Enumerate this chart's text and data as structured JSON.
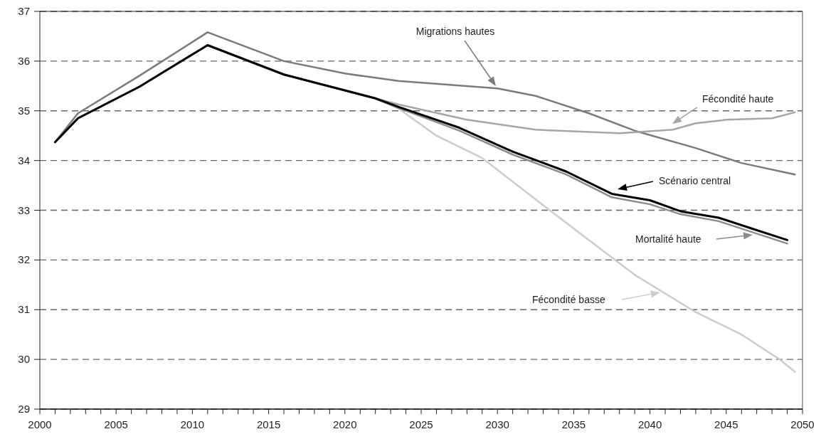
{
  "chart_data": {
    "type": "line",
    "xlim": [
      2000,
      2050
    ],
    "xticks": [
      2000,
      {
        "value": 2001,
        "label": null
      },
      {
        "value": 2002,
        "label": null
      },
      {
        "value": 2003,
        "label": null
      },
      {
        "value": 2004,
        "label": null
      },
      2005,
      {
        "value": 2006,
        "label": null
      },
      {
        "value": 2007,
        "label": null
      },
      {
        "value": 2008,
        "label": null
      },
      {
        "value": 2009,
        "label": null
      },
      2010,
      {
        "value": 2011,
        "label": null
      },
      {
        "value": 2012,
        "label": null
      },
      {
        "value": 2013,
        "label": null
      },
      {
        "value": 2014,
        "label": null
      },
      2015,
      {
        "value": 2016,
        "label": null
      },
      {
        "value": 2017,
        "label": null
      },
      {
        "value": 2018,
        "label": null
      },
      {
        "value": 2019,
        "label": null
      },
      2020,
      {
        "value": 2021,
        "label": null
      },
      {
        "value": 2022,
        "label": null
      },
      {
        "value": 2023,
        "label": null
      },
      {
        "value": 2024,
        "label": null
      },
      2025,
      {
        "value": 2026,
        "label": null
      },
      {
        "value": 2027,
        "label": null
      },
      {
        "value": 2028,
        "label": null
      },
      {
        "value": 2029,
        "label": null
      },
      2030,
      {
        "value": 2031,
        "label": null
      },
      {
        "value": 2032,
        "label": null
      },
      {
        "value": 2033,
        "label": null
      },
      {
        "value": 2034,
        "label": null
      },
      2035,
      {
        "value": 2036,
        "label": null
      },
      {
        "value": 2037,
        "label": null
      },
      {
        "value": 2038,
        "label": null
      },
      {
        "value": 2039,
        "label": null
      },
      2040,
      {
        "value": 2041,
        "label": null
      },
      {
        "value": 2042,
        "label": null
      },
      {
        "value": 2043,
        "label": null
      },
      {
        "value": 2044,
        "label": null
      },
      2045,
      {
        "value": 2046,
        "label": null
      },
      {
        "value": 2047,
        "label": null
      },
      {
        "value": 2048,
        "label": null
      },
      {
        "value": 2049,
        "label": null
      },
      2050
    ],
    "ylim": [
      29,
      37
    ],
    "yticks": [
      29,
      30,
      31,
      32,
      33,
      34,
      35,
      36,
      37
    ],
    "grid": "y",
    "line_style": "solid",
    "marker": "none",
    "annotations": [
      "Migrations hautes",
      "Fécondité haute",
      "Fécondité basse",
      "Mortalité haute",
      "Scénario central"
    ],
    "series": [
      {
        "color": "#7a7a7a",
        "x": [
          2001,
          2002.5,
          2006.5,
          2011,
          2016,
          2020,
          2023.5,
          2030,
          2032.5,
          2036,
          2039,
          2043,
          2046,
          2049.5
        ],
        "values": [
          34.37,
          34.95,
          35.7,
          36.58,
          36.0,
          35.75,
          35.6,
          35.45,
          35.3,
          34.95,
          34.6,
          34.25,
          33.95,
          33.72
        ]
      },
      {
        "color": "#a6a6a6",
        "x": [
          2001,
          2002.5,
          2006.5,
          2011,
          2016,
          2022,
          2023.5,
          2028,
          2032.5,
          2038,
          2041.5,
          2043,
          2045,
          2048,
          2049.5
        ],
        "values": [
          34.37,
          34.85,
          35.48,
          36.32,
          35.73,
          35.25,
          35.13,
          34.82,
          34.62,
          34.55,
          34.62,
          34.75,
          34.82,
          34.85,
          34.97
        ]
      },
      {
        "color": "#cccccc",
        "x": [
          2001,
          2002.5,
          2006.5,
          2011,
          2016,
          2022,
          2023.5,
          2026,
          2029,
          2033,
          2036,
          2039,
          2043,
          2046,
          2048.5,
          2049.5
        ],
        "values": [
          34.37,
          34.85,
          35.48,
          36.32,
          35.73,
          35.25,
          35.05,
          34.5,
          34.05,
          33.1,
          32.4,
          31.7,
          30.95,
          30.5,
          30.0,
          29.75
        ]
      },
      {
        "color": "#8c8c8c",
        "x": [
          2001,
          2002.5,
          2006.5,
          2011,
          2016,
          2022,
          2023.5,
          2027.5,
          2031,
          2034.5,
          2037.5,
          2040,
          2042,
          2044.5,
          2047,
          2049
        ],
        "values": [
          34.37,
          34.85,
          35.48,
          36.32,
          35.73,
          35.25,
          35.06,
          34.6,
          34.12,
          33.72,
          33.26,
          33.12,
          32.92,
          32.78,
          32.53,
          32.33
        ]
      },
      {
        "color": "#000000",
        "x": [
          2001,
          2002.5,
          2006.5,
          2011,
          2016,
          2022,
          2023.5,
          2027.5,
          2031,
          2034.5,
          2037.5,
          2040,
          2042,
          2044.5,
          2047,
          2049
        ],
        "values": [
          34.37,
          34.85,
          35.48,
          36.32,
          35.73,
          35.25,
          35.08,
          34.66,
          34.18,
          33.78,
          33.33,
          33.2,
          32.98,
          32.85,
          32.6,
          32.4
        ]
      }
    ]
  }
}
